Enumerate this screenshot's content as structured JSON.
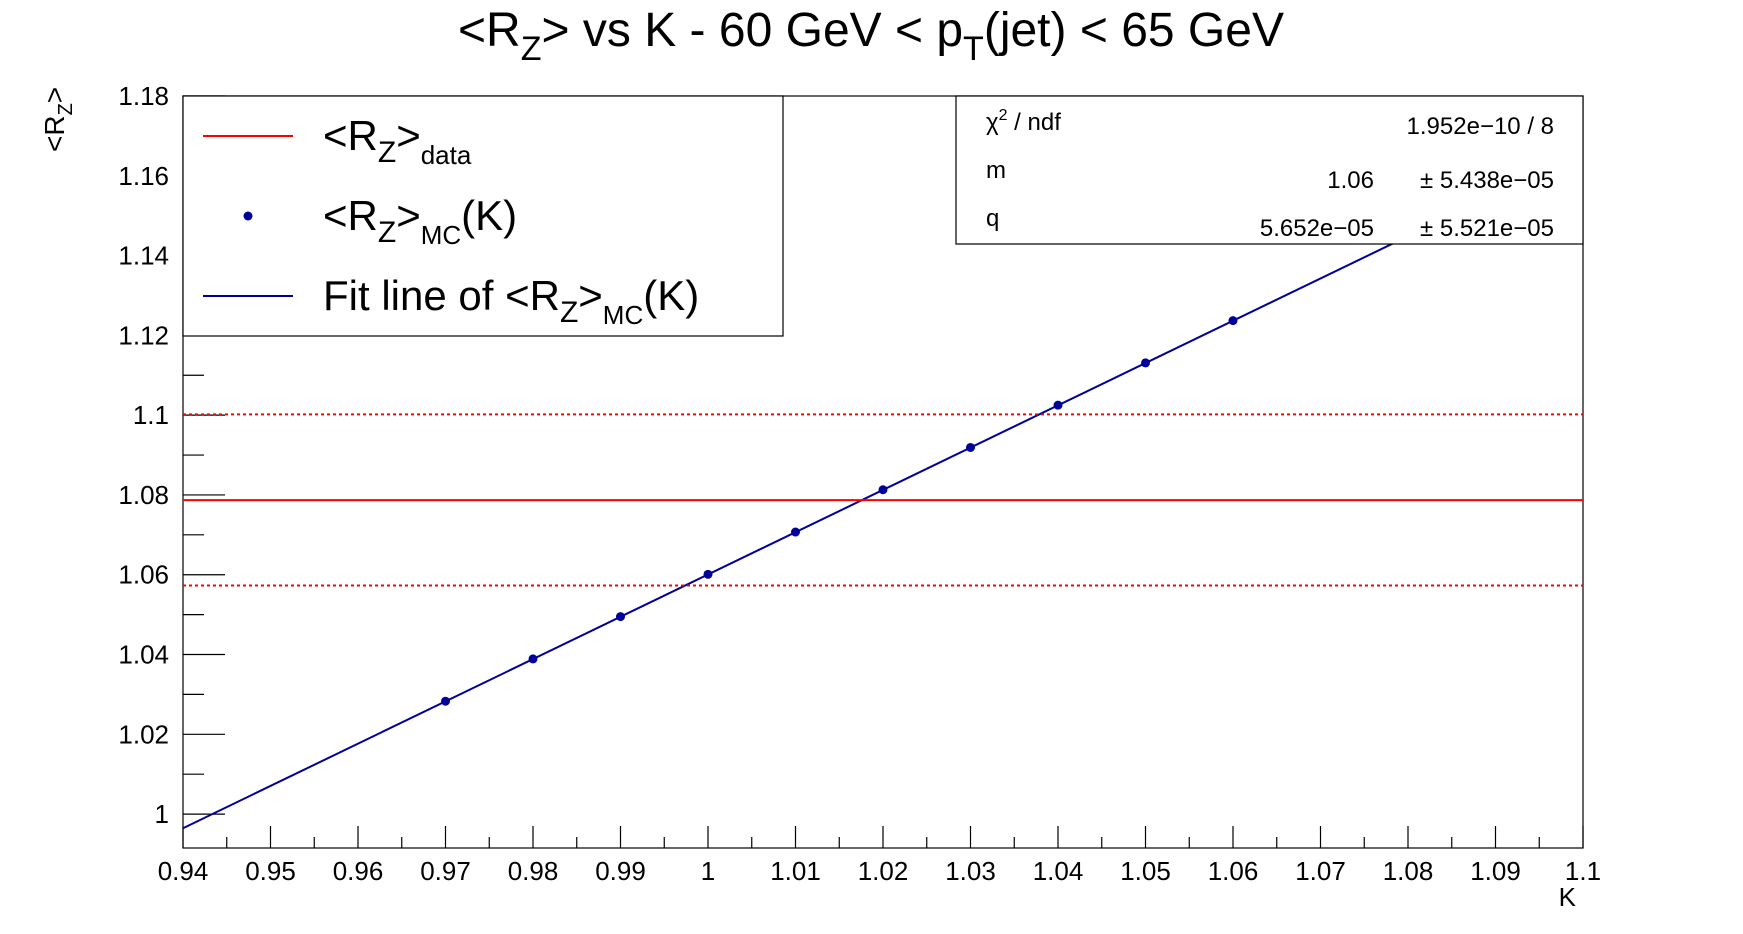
{
  "chart_data": {
    "type": "scatter",
    "title": {
      "parts": [
        "<R",
        "Z",
        "> vs K - 60 GeV < p",
        "T",
        "(jet) < 65 GeV"
      ]
    },
    "xlabel": "K",
    "ylabel": {
      "base": "<R",
      "sub": "Z",
      "close": ">"
    },
    "xlim": [
      0.94,
      1.1
    ],
    "ylim": [
      0.9915,
      1.18
    ],
    "xticks": [
      0.94,
      0.95,
      0.96,
      0.97,
      0.98,
      0.99,
      1,
      1.01,
      1.02,
      1.03,
      1.04,
      1.05,
      1.06,
      1.07,
      1.08,
      1.09,
      1.1
    ],
    "xtick_labels": [
      "0.94",
      "0.95",
      "0.96",
      "0.97",
      "0.98",
      "0.99",
      "1",
      "1.01",
      "1.02",
      "1.03",
      "1.04",
      "1.05",
      "1.06",
      "1.07",
      "1.08",
      "1.09",
      "1.1"
    ],
    "yticks": [
      1,
      1.02,
      1.04,
      1.06,
      1.08,
      1.1,
      1.12,
      1.14,
      1.16,
      1.18
    ],
    "ytick_labels": [
      "1",
      "1.02",
      "1.04",
      "1.06",
      "1.08",
      "1.1",
      "1.12",
      "1.14",
      "1.16",
      "1.18"
    ],
    "series": [
      {
        "name": "<R_Z>_MC(K)",
        "kind": "points",
        "color": "#000099",
        "x": [
          0.97,
          0.98,
          0.99,
          1.0,
          1.01,
          1.02,
          1.03,
          1.04,
          1.05,
          1.06
        ],
        "y": [
          1.0283,
          1.0389,
          1.0495,
          1.0601,
          1.0707,
          1.0813,
          1.0919,
          1.1025,
          1.1131,
          1.1237
        ]
      },
      {
        "name": "Fit line of <R_Z>_MC(K)",
        "kind": "line",
        "color": "#000099",
        "slope": 1.06,
        "intercept": 5.652e-05,
        "x_range": [
          0.94,
          1.1
        ]
      },
      {
        "name": "<R_Z>_data",
        "kind": "hline",
        "color": "#ff0000",
        "y": 1.0787
      },
      {
        "name": "",
        "kind": "hline-dashed",
        "color": "#ff0000",
        "values": [
          1.1002,
          1.0573
        ]
      }
    ],
    "legend": {
      "placement": "top-left",
      "entries": [
        {
          "text": [
            "<R",
            "Z",
            ">",
            "data"
          ],
          "marker": "line",
          "color": "#ff0000"
        },
        {
          "text": [
            "<R",
            "Z",
            ">",
            "MC",
            "(K)"
          ],
          "marker": "point",
          "color": "#000099"
        },
        {
          "text": [
            "Fit line of <R",
            "Z",
            ">",
            "MC",
            "(K)"
          ],
          "marker": "line",
          "color": "#000099"
        }
      ]
    },
    "stats_box": {
      "placement": "top-right",
      "rows": [
        {
          "label": "χ",
          "label_sup": "2",
          "label_rest": " / ndf",
          "value": "1.952e−10 / 8",
          "error": ""
        },
        {
          "label": "m",
          "label_sup": "",
          "label_rest": "",
          "value": "1.06",
          "error": "± 5.438e−05"
        },
        {
          "label": "q",
          "label_sup": "",
          "label_rest": "",
          "value": "5.652e−05",
          "error": "± 5.521e−05"
        }
      ]
    },
    "grid": false
  }
}
